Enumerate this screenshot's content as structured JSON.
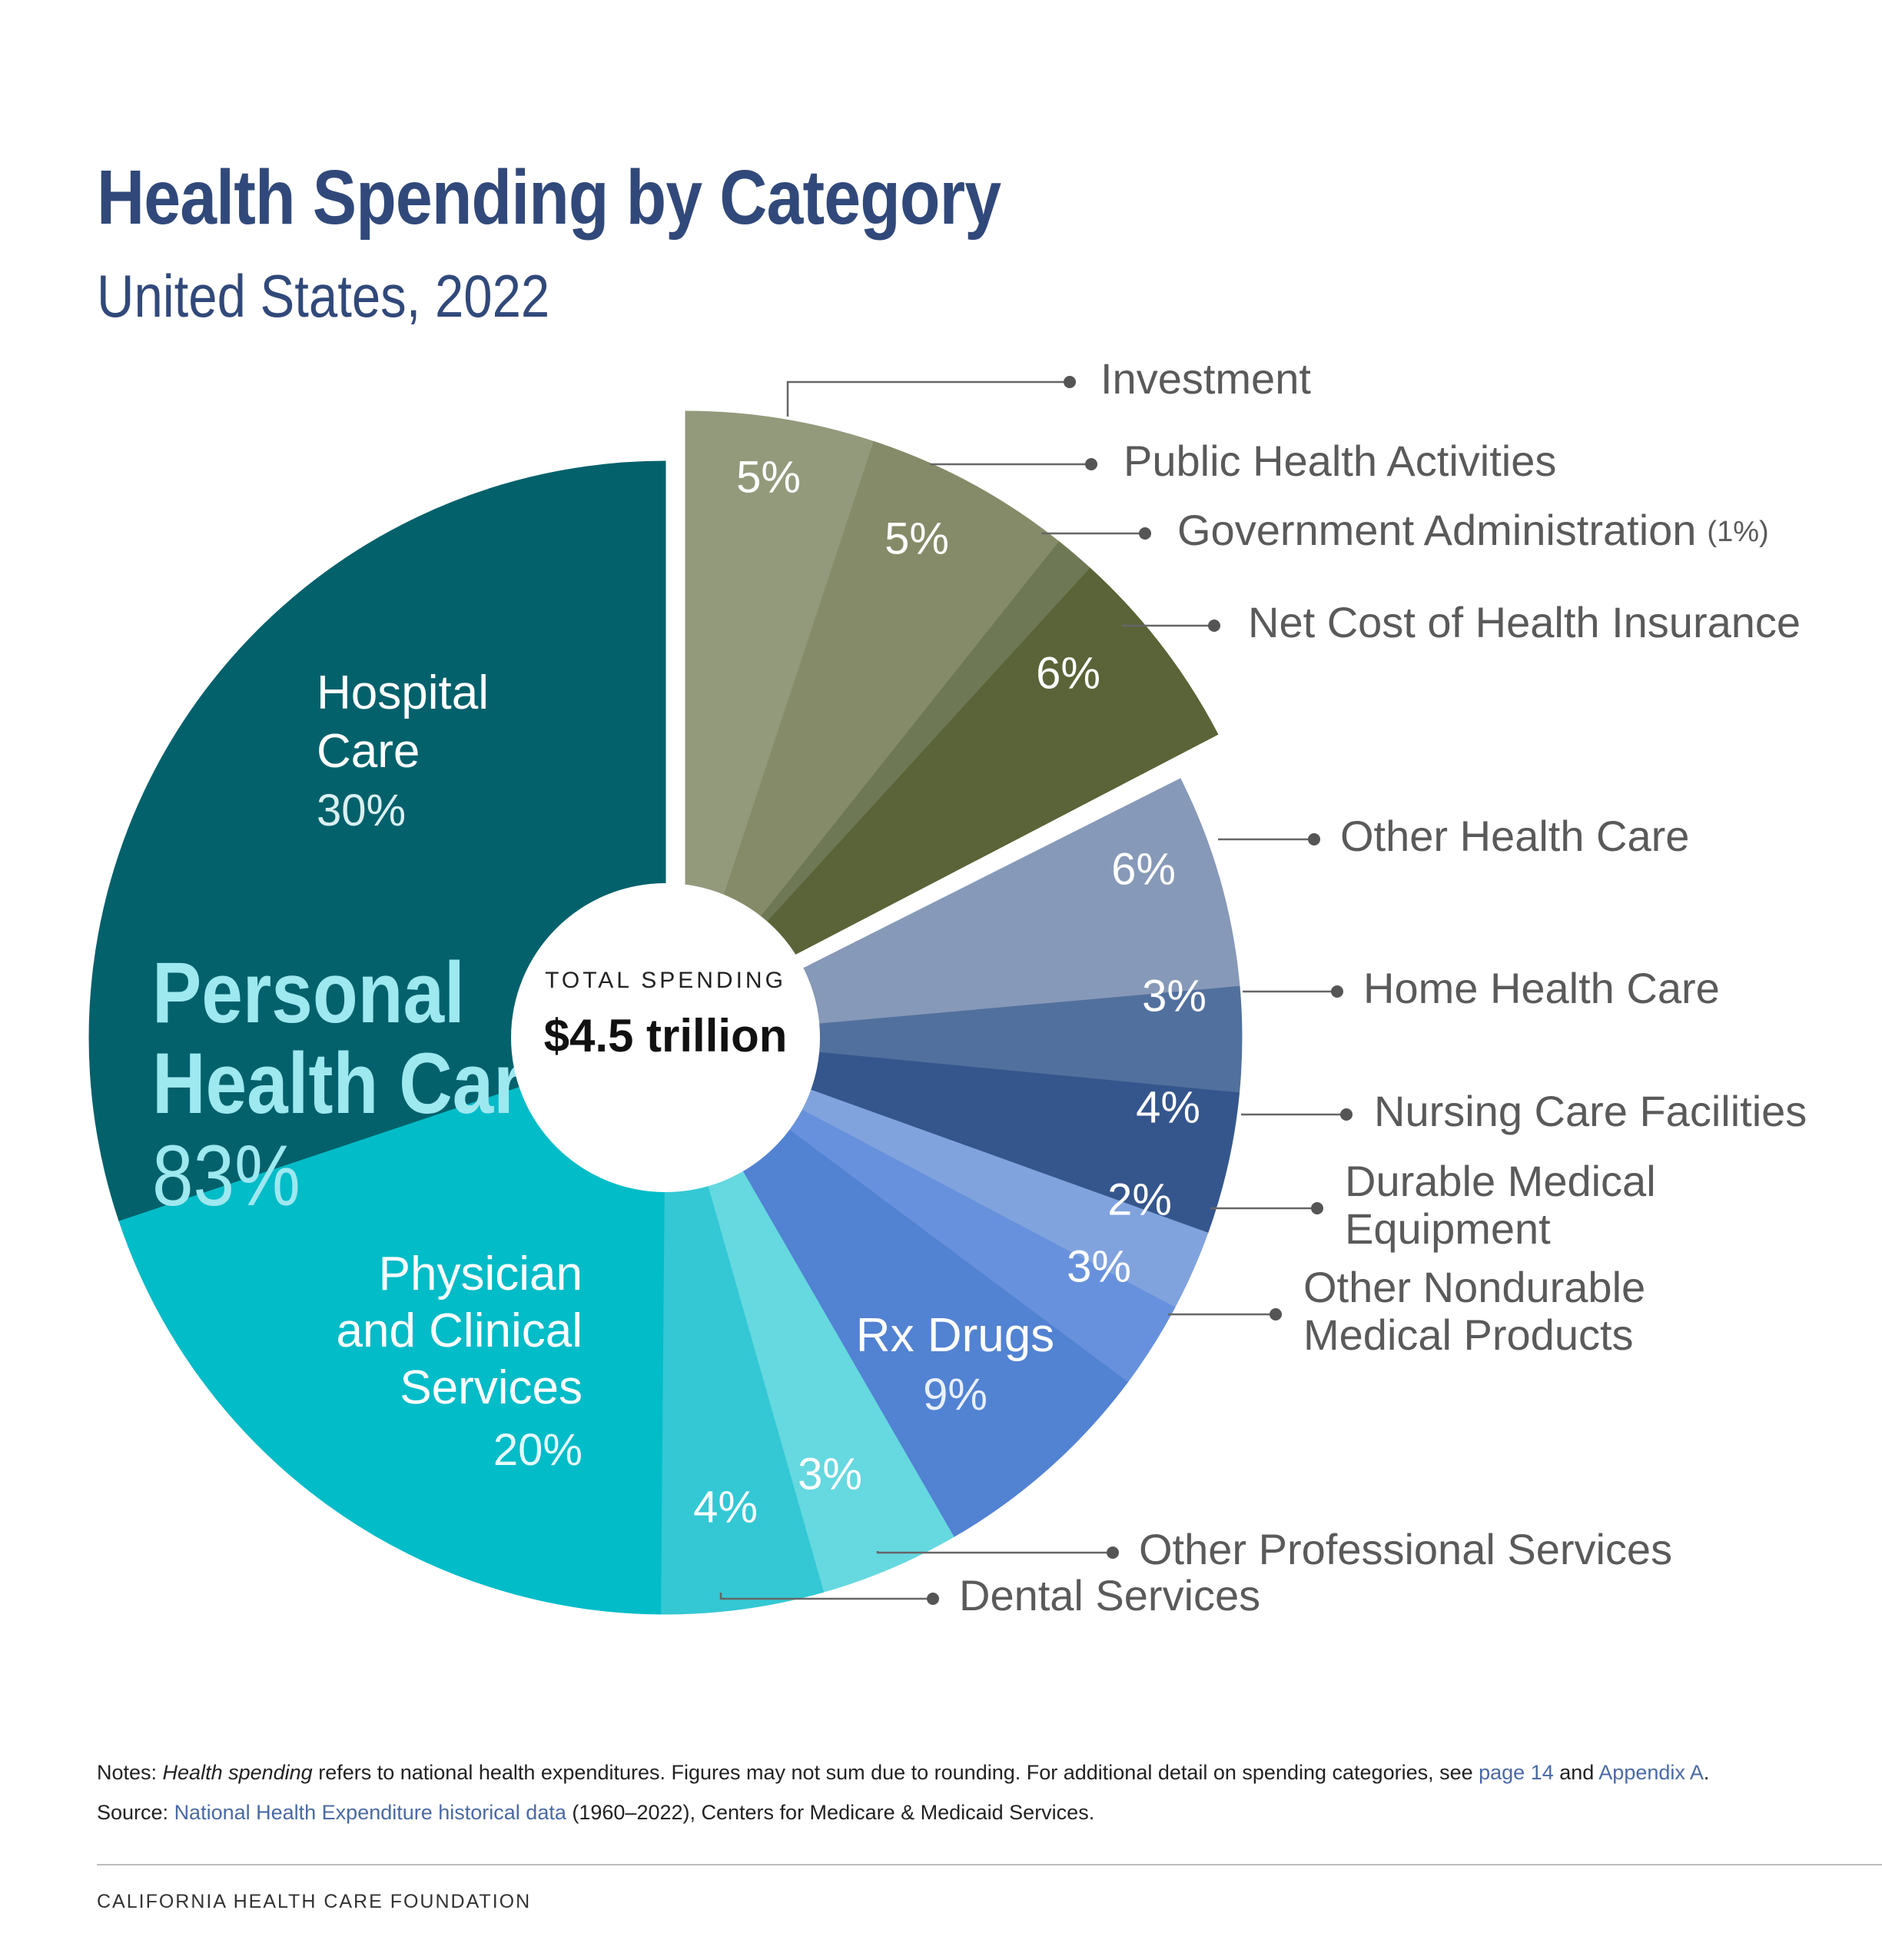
{
  "title": "Health Spending by Category",
  "subtitle": "United States, 2022",
  "chart_data": {
    "type": "pie",
    "title": "Health Spending by Category",
    "subtitle": "United States, 2022",
    "center_label": "TOTAL SPENDING",
    "center_value": "$4.5 trillion",
    "groups": [
      {
        "name": "Personal Health Care",
        "value": 83,
        "label_value": "83%"
      }
    ],
    "slices": [
      {
        "name": "Investment",
        "value": 5,
        "label": "5%",
        "color": "#939a7c"
      },
      {
        "name": "Public Health Activities",
        "value": 5,
        "label": "5%",
        "color": "#858b68"
      },
      {
        "name": "Government Administration",
        "value": 1,
        "label": "(1%)",
        "color": "#6f7854"
      },
      {
        "name": "Net Cost of Health Insurance",
        "value": 6,
        "label": "6%",
        "color": "#5a6438"
      },
      {
        "name": "Other Health Care",
        "value": 6,
        "label": "6%",
        "color": "#8799b8"
      },
      {
        "name": "Home Health Care",
        "value": 3,
        "label": "3%",
        "color": "#52709e"
      },
      {
        "name": "Nursing Care Facilities",
        "value": 4,
        "label": "4%",
        "color": "#35568c"
      },
      {
        "name": "Durable Medical Equipment",
        "value": 2,
        "label": "2%",
        "color": "#80a3de"
      },
      {
        "name": "Other Nondurable Medical Products",
        "value": 3,
        "label": "3%",
        "color": "#6791dc"
      },
      {
        "name": "Rx Drugs",
        "value": 9,
        "label": "9%",
        "color": "#5282d2"
      },
      {
        "name": "Other Professional Services",
        "value": 3,
        "label": "3%",
        "color": "#66d8e0"
      },
      {
        "name": "Dental Services",
        "value": 4,
        "label": "4%",
        "color": "#33c8d4"
      },
      {
        "name": "Physician and Clinical Services",
        "value": 20,
        "label": "20%",
        "color": "#02bcc8"
      },
      {
        "name": "Hospital Care",
        "value": 30,
        "label": "30%",
        "color": "#03616b"
      }
    ],
    "inside_labels": {
      "hospital": [
        "Hospital",
        "Care"
      ],
      "physician": [
        "Physician",
        "and Clinical",
        "Services"
      ],
      "rx": [
        "Rx Drugs"
      ],
      "personal": [
        "Personal",
        "Health Care"
      ]
    },
    "legend": "callouts-right"
  },
  "external_labels": {
    "investment": [
      "Investment"
    ],
    "public_health": [
      "Public Health Activities"
    ],
    "gov_admin": [
      "Government Administration"
    ],
    "gov_admin_pct": "(1%)",
    "net_cost": [
      "Net Cost of Health Insurance"
    ],
    "other_hc": [
      "Other Health Care"
    ],
    "home_health": [
      "Home Health Care"
    ],
    "nursing": [
      "Nursing Care Facilities"
    ],
    "dme": [
      "Durable Medical",
      "Equipment"
    ],
    "nondurable": [
      "Other Nondurable",
      "Medical Products"
    ],
    "other_prof": [
      "Other Professional Services"
    ],
    "dental": [
      "Dental Services"
    ]
  },
  "notes": {
    "label": "Notes: ",
    "term": "Health spending",
    "text": " refers to national health expenditures. Figures may not sum due to rounding. For additional detail on spending categories, see ",
    "link1": "page 14",
    "and": " and ",
    "link2": "Appendix A",
    "end": "."
  },
  "source": {
    "label": "Source: ",
    "link": "National Health Expenditure historical data",
    "text": " (1960–2022), Centers for Medicare & Medicaid Services."
  },
  "footer": "CALIFORNIA HEALTH CARE FOUNDATION"
}
